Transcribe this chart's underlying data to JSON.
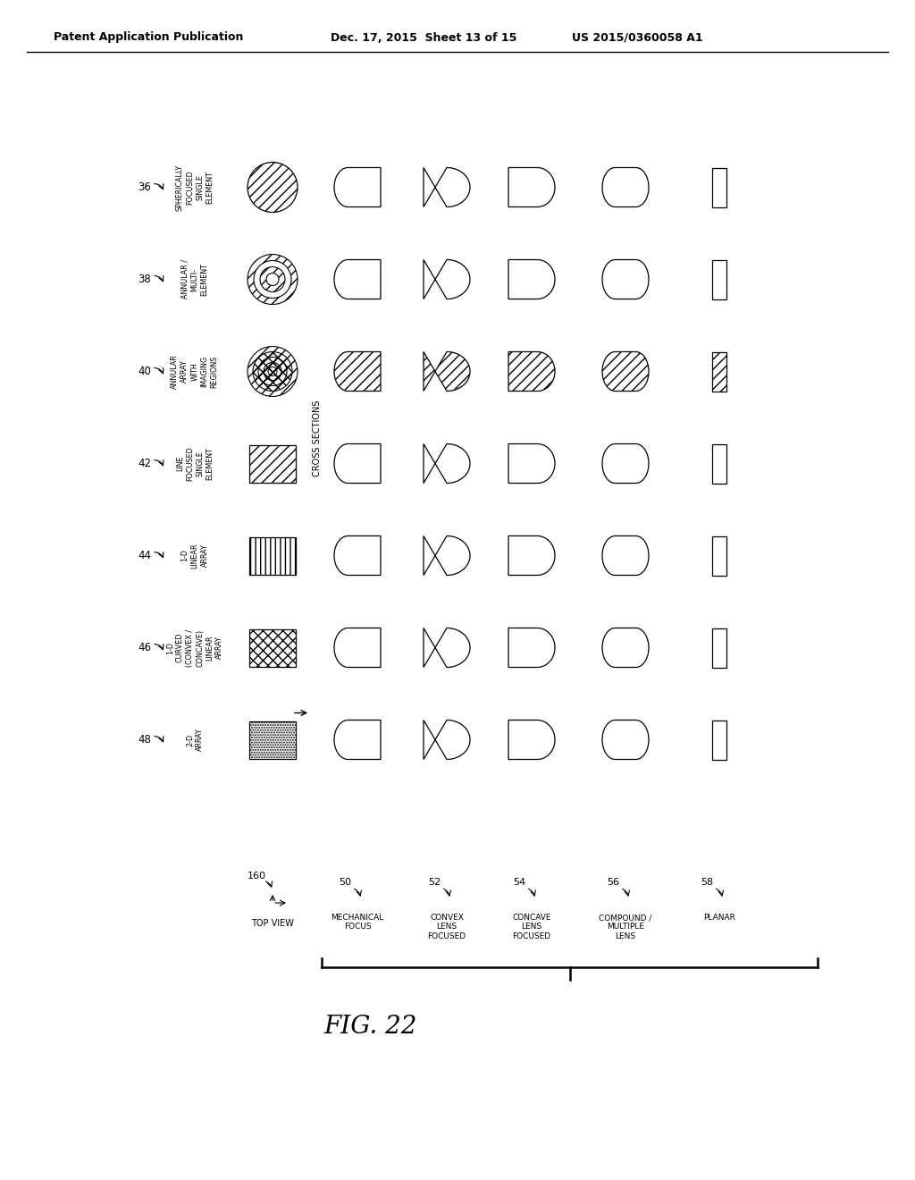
{
  "bg_color": "#ffffff",
  "header_left": "Patent Application Publication",
  "header_mid": "Dec. 17, 2015  Sheet 13 of 15",
  "header_right": "US 2015/0360058 A1",
  "fig_label": "FIG. 22",
  "row_labels": [
    "SPHERICALLY\nFOCUSED\nSINGLE\nELEMENT",
    "ANNULAR /\nMULTI-\nELEMENT",
    "ANNULAR\nARRAY\nWITH\nIMAGING\nREGIONS",
    "LINE\nFOCUSED\nSINGLE\nELEMENT",
    "1-D\nLINEAR\nARRAY",
    "1-D\nCURVED\n(CONVEX /\nCONCAVE)\nLINEAR\nARRAY",
    "2-D\nARRAY"
  ],
  "row_numbers": [
    "36",
    "38",
    "40",
    "42",
    "44",
    "46",
    "48"
  ],
  "col_labels": [
    "MECHANICAL\nFOCUS",
    "CONVEX\nLENS\nFOCUSED",
    "CONCAVE\nLENS\nFOCUSED",
    "COMPOUND /\nMULTIPLE\nLENS",
    "PLANAR"
  ],
  "col_numbers": [
    "50",
    "52",
    "54",
    "56",
    "58"
  ],
  "top_view_label": "TOP VIEW",
  "top_view_number": "160",
  "cross_sections_label": "CROSS SECTIONS"
}
